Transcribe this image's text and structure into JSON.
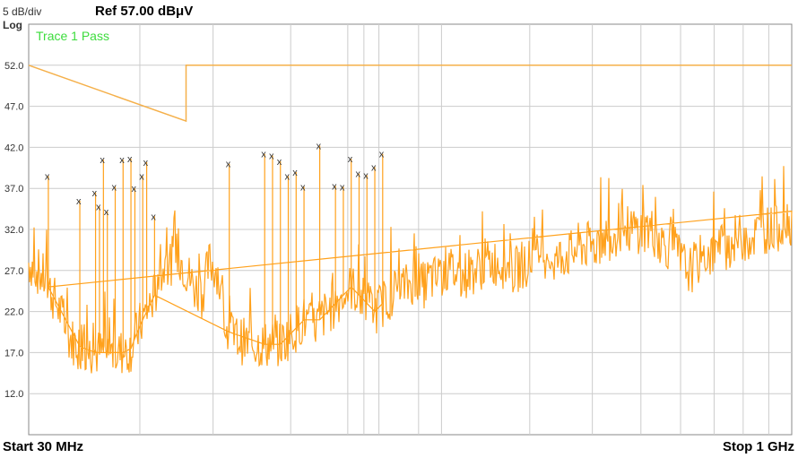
{
  "header": {
    "scale": "5 dB/div",
    "ref": "Ref 57.00 dBμV",
    "log": "Log"
  },
  "footer": {
    "start": "Start 30 MHz",
    "stop": "Stop 1 GHz"
  },
  "chart_data": {
    "type": "line",
    "grid": true,
    "x_range_mhz": [
      30,
      1000
    ],
    "ylim": [
      7,
      57
    ],
    "y_ticks": [
      "52.0",
      "47.0",
      "42.0",
      "37.0",
      "32.0",
      "27.0",
      "22.0",
      "17.0",
      "12.0"
    ],
    "annotation": "Trace 1 Pass",
    "colors": {
      "trace": "#ffa11c",
      "limit": "#f5b04a",
      "grid": "#cccccc",
      "pass": "#3ddc3d",
      "marker": "#333333"
    },
    "limit_line": {
      "x": [
        30,
        230,
        230,
        1000
      ],
      "y": [
        52.0,
        45.2,
        52.0,
        52.0
      ]
    },
    "series": [
      {
        "x": [
          30,
          40,
          50,
          60,
          70,
          80,
          90,
          100,
          110,
          120,
          130,
          140,
          150,
          160,
          170,
          180,
          190,
          200,
          210,
          220,
          230,
          240,
          250,
          260,
          270,
          280,
          290,
          300,
          310,
          320,
          330,
          340,
          350,
          360,
          370,
          380,
          390,
          400,
          410,
          420,
          430,
          440,
          450,
          460,
          470,
          480,
          490,
          500,
          510,
          520,
          530,
          540,
          550,
          560,
          570,
          580,
          590,
          600,
          610,
          620,
          630,
          640,
          650,
          660,
          670,
          680,
          690,
          700,
          710,
          720,
          730,
          740,
          750,
          760,
          770,
          780,
          790,
          800,
          810,
          820,
          830,
          840,
          850,
          860,
          870,
          880,
          890,
          900,
          910,
          920,
          930,
          940,
          950,
          960,
          970,
          980,
          990,
          1000
        ],
        "y": [
          28,
          27,
          26,
          24,
          22,
          19,
          18,
          17.5,
          17,
          17,
          17,
          17,
          17,
          17.5,
          20,
          22,
          24,
          27,
          28,
          29,
          27,
          25,
          24,
          28,
          27,
          20,
          19,
          18.5,
          18,
          18,
          18,
          18,
          18,
          19,
          20,
          21,
          20,
          21,
          22,
          23,
          24,
          25,
          24,
          23,
          22,
          23,
          24,
          25,
          25,
          26,
          25,
          26,
          26,
          27,
          27,
          26,
          27,
          27,
          28,
          28,
          28,
          27,
          27,
          28,
          28,
          29,
          29,
          28,
          29,
          29,
          30,
          30,
          30,
          31,
          31,
          32,
          32,
          32,
          32,
          32,
          31,
          30,
          30,
          28,
          27,
          28,
          29,
          29,
          30,
          30,
          31,
          31,
          31,
          32,
          32,
          32,
          33,
          33
        ]
      }
    ],
    "peaks": [
      {
        "x": 55,
        "y": 38.5
      },
      {
        "x": 95,
        "y": 35.5
      },
      {
        "x": 115,
        "y": 36.5
      },
      {
        "x": 120,
        "y": 34.8
      },
      {
        "x": 125,
        "y": 40.5
      },
      {
        "x": 130,
        "y": 34.2
      },
      {
        "x": 140,
        "y": 37.2
      },
      {
        "x": 150,
        "y": 40.5
      },
      {
        "x": 160,
        "y": 40.6
      },
      {
        "x": 165,
        "y": 37
      },
      {
        "x": 175,
        "y": 38.5
      },
      {
        "x": 180,
        "y": 40.2
      },
      {
        "x": 190,
        "y": 33.6
      },
      {
        "x": 285,
        "y": 40
      },
      {
        "x": 330,
        "y": 41.2
      },
      {
        "x": 340,
        "y": 41
      },
      {
        "x": 350,
        "y": 40.3
      },
      {
        "x": 360,
        "y": 38.5
      },
      {
        "x": 370,
        "y": 39
      },
      {
        "x": 380,
        "y": 37.2
      },
      {
        "x": 400,
        "y": 42.2
      },
      {
        "x": 420,
        "y": 37.3
      },
      {
        "x": 430,
        "y": 37.2
      },
      {
        "x": 440,
        "y": 40.6
      },
      {
        "x": 450,
        "y": 38.8
      },
      {
        "x": 460,
        "y": 38.6
      },
      {
        "x": 470,
        "y": 39.6
      },
      {
        "x": 480,
        "y": 41.2
      }
    ]
  }
}
